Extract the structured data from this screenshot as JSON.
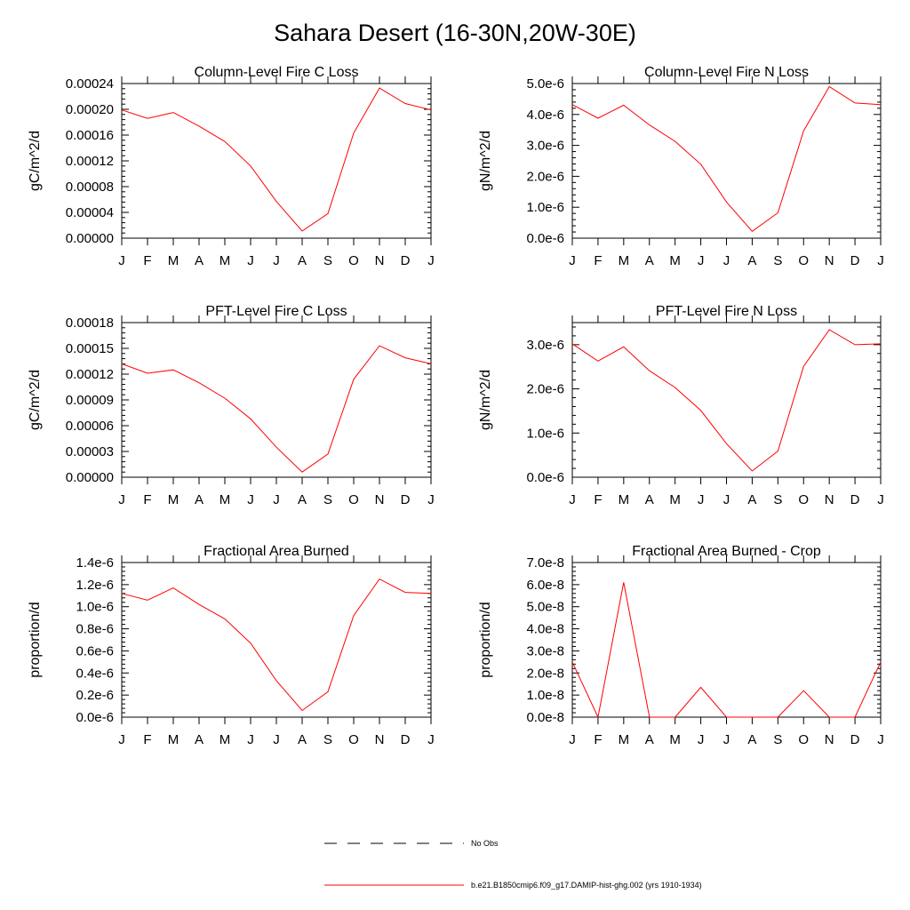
{
  "title": "Sahara Desert (16-30N,20W-30E)",
  "months": [
    "J",
    "F",
    "M",
    "A",
    "M",
    "J",
    "J",
    "A",
    "S",
    "O",
    "N",
    "D",
    "J"
  ],
  "colors": {
    "model": "#ff0000",
    "obs": "#000000",
    "axes": "#000000"
  },
  "legend": {
    "obs_label": "No Obs",
    "model_label": "b.e21.B1850cmip6.f09_g17.DAMIP-hist-ghg.002 (yrs 1910-1934)"
  },
  "chart_data": [
    {
      "type": "line",
      "title": "Column-Level Fire C Loss",
      "ylabel": "gC/m^2/d",
      "ylim": [
        0,
        0.00024
      ],
      "yticks": [
        "0.00000",
        "0.00004",
        "0.00008",
        "0.00012",
        "0.00016",
        "0.00020",
        "0.00024"
      ],
      "categories": [
        "J",
        "F",
        "M",
        "A",
        "M",
        "J",
        "J",
        "A",
        "S",
        "O",
        "N",
        "D",
        "J"
      ],
      "series": [
        {
          "values": [
            0.000199,
            0.000186,
            0.000195,
            0.000174,
            0.00015,
            0.000112,
            5.7e-05,
            1.1e-05,
            3.8e-05,
            0.000163,
            0.000233,
            0.000209,
            0.000199
          ]
        }
      ]
    },
    {
      "type": "line",
      "title": "Column-Level Fire N Loss",
      "ylabel": "gN/m^2/d",
      "ylim": [
        0,
        5e-06
      ],
      "yticks": [
        "0.0e-6",
        "1.0e-6",
        "2.0e-6",
        "3.0e-6",
        "4.0e-6",
        "5.0e-6"
      ],
      "categories": [
        "J",
        "F",
        "M",
        "A",
        "M",
        "J",
        "J",
        "A",
        "S",
        "O",
        "N",
        "D",
        "J"
      ],
      "series": [
        {
          "values": [
            4.32e-06,
            3.88e-06,
            4.3e-06,
            3.66e-06,
            3.13e-06,
            2.39e-06,
            1.17e-06,
            2.2e-07,
            8.2e-07,
            3.47e-06,
            4.9e-06,
            4.37e-06,
            4.32e-06
          ]
        }
      ]
    },
    {
      "type": "line",
      "title": "PFT-Level Fire C Loss",
      "ylabel": "gC/m^2/d",
      "ylim": [
        0,
        0.00018
      ],
      "yticks": [
        "0.00000",
        "0.00003",
        "0.00006",
        "0.00009",
        "0.00012",
        "0.00015",
        "0.00018"
      ],
      "categories": [
        "J",
        "F",
        "M",
        "A",
        "M",
        "J",
        "J",
        "A",
        "S",
        "O",
        "N",
        "D",
        "J"
      ],
      "series": [
        {
          "values": [
            0.000132,
            0.000121,
            0.000125,
            0.00011,
            9.2e-05,
            6.8e-05,
            3.5e-05,
            6e-06,
            2.7e-05,
            0.000114,
            0.000153,
            0.000139,
            0.000132
          ]
        }
      ]
    },
    {
      "type": "line",
      "title": "PFT-Level Fire N Loss",
      "ylabel": "gN/m^2/d",
      "ylim": [
        0,
        3.5e-06
      ],
      "yticks": [
        "0.0e-6",
        "1.0e-6",
        "2.0e-6",
        "3.0e-6"
      ],
      "ytick_values": [
        0,
        1e-06,
        2e-06,
        3e-06
      ],
      "categories": [
        "J",
        "F",
        "M",
        "A",
        "M",
        "J",
        "J",
        "A",
        "S",
        "O",
        "N",
        "D",
        "J"
      ],
      "series": [
        {
          "values": [
            3.02e-06,
            2.63e-06,
            2.95e-06,
            2.41e-06,
            2.03e-06,
            1.51e-06,
            7.6e-07,
            1.4e-07,
            5.9e-07,
            2.51e-06,
            3.34e-06,
            3e-06,
            3.02e-06
          ]
        }
      ]
    },
    {
      "type": "line",
      "title": "Fractional Area Burned",
      "ylabel": "proportion/d",
      "ylim": [
        0,
        1.4e-06
      ],
      "yticks": [
        "0.0e-6",
        "0.2e-6",
        "0.4e-6",
        "0.6e-6",
        "0.8e-6",
        "1.0e-6",
        "1.2e-6",
        "1.4e-6"
      ],
      "categories": [
        "J",
        "F",
        "M",
        "A",
        "M",
        "J",
        "J",
        "A",
        "S",
        "O",
        "N",
        "D",
        "J"
      ],
      "series": [
        {
          "values": [
            1.12e-06,
            1.06e-06,
            1.17e-06,
            1.02e-06,
            8.9e-07,
            6.7e-07,
            3.3e-07,
            6e-08,
            2.3e-07,
            9.2e-07,
            1.25e-06,
            1.13e-06,
            1.12e-06
          ]
        }
      ]
    },
    {
      "type": "line",
      "title": "Fractional Area Burned - Crop",
      "ylabel": "proportion/d",
      "ylim": [
        0,
        7e-08
      ],
      "yticks": [
        "0.0e-8",
        "1.0e-8",
        "2.0e-8",
        "3.0e-8",
        "4.0e-8",
        "5.0e-8",
        "6.0e-8",
        "7.0e-8"
      ],
      "categories": [
        "J",
        "F",
        "M",
        "A",
        "M",
        "J",
        "J",
        "A",
        "S",
        "O",
        "N",
        "D",
        "J"
      ],
      "series": [
        {
          "values": [
            2.5e-08,
            0,
            6.1e-08,
            0,
            0,
            1.35e-08,
            0,
            0,
            0,
            1.2e-08,
            0,
            0,
            2.5e-08
          ]
        }
      ]
    }
  ]
}
